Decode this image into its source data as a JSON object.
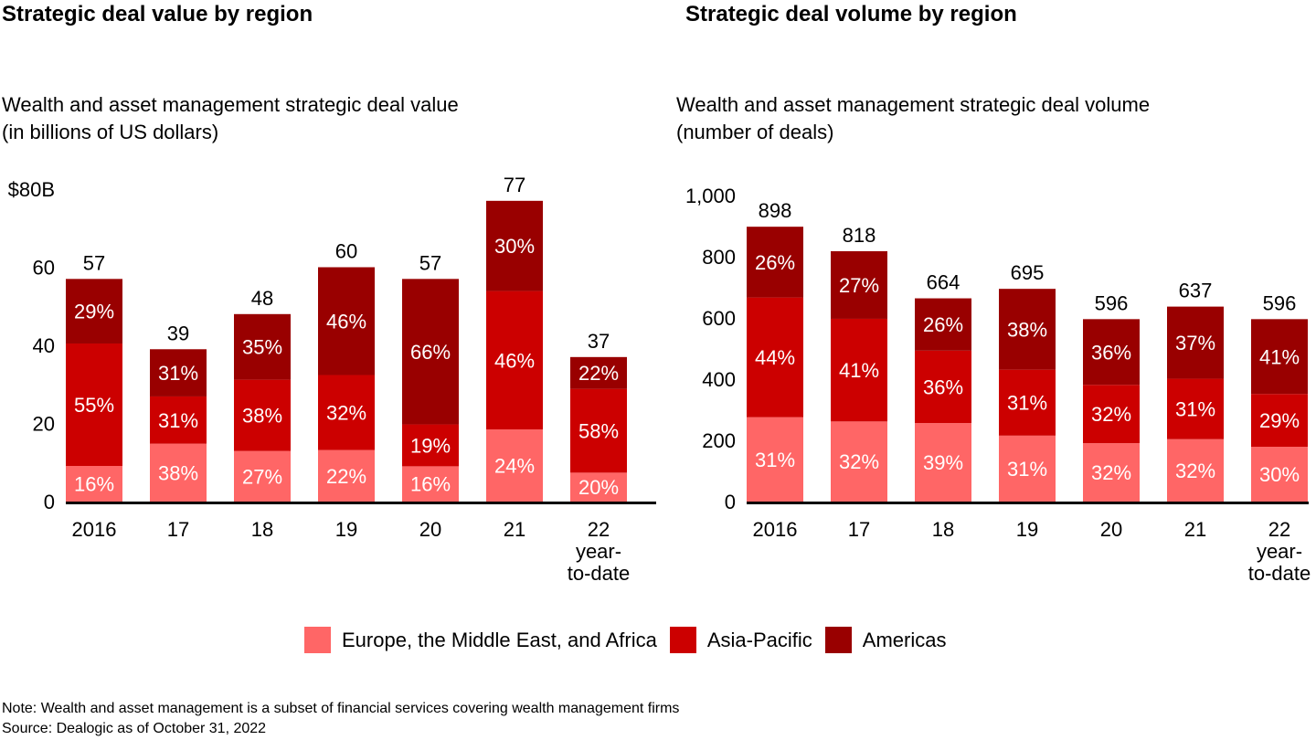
{
  "colors": {
    "emea": "#FF6666",
    "apac": "#CC0000",
    "americas": "#990000",
    "axis": "#000000",
    "segment_label": "#FFFFFF"
  },
  "legend": [
    {
      "key": "emea",
      "label": "Europe, the Middle East, and Africa"
    },
    {
      "key": "apac",
      "label": "Asia-Pacific"
    },
    {
      "key": "americas",
      "label": "Americas"
    }
  ],
  "notes": {
    "note": "Note: Wealth and asset management is a subset of financial services covering wealth management firms",
    "source": "Source: Dealogic as of October 31, 2022"
  },
  "chart_data": [
    {
      "type": "bar",
      "stacked": true,
      "title": "Strategic deal value by region",
      "subtitle_line1": "Wealth and asset management strategic deal value",
      "subtitle_line2": "(in billions of US dollars)",
      "xlabel": "",
      "ylabel": "",
      "ylim": [
        0,
        80
      ],
      "yticks": [
        0,
        20,
        40,
        60,
        80
      ],
      "ytick_labels": [
        "0",
        "20",
        "40",
        "60",
        "$80B"
      ],
      "grid": false,
      "legend_position": "bottom",
      "categories": [
        "2016",
        "17",
        "18",
        "19",
        "20",
        "21",
        "22"
      ],
      "category_sublabels": [
        "",
        "",
        "",
        "",
        "",
        "",
        "year-\nto-date"
      ],
      "totals": [
        57,
        39,
        48,
        60,
        57,
        77,
        37
      ],
      "total_labels": [
        "57",
        "39",
        "48",
        "60",
        "57",
        "77",
        "37"
      ],
      "series": [
        {
          "name": "Europe, the Middle East, and Africa",
          "key": "emea",
          "share_pct": [
            16,
            38,
            27,
            22,
            16,
            24,
            20
          ]
        },
        {
          "name": "Asia-Pacific",
          "key": "apac",
          "share_pct": [
            55,
            31,
            38,
            32,
            19,
            46,
            58
          ]
        },
        {
          "name": "Americas",
          "key": "americas",
          "share_pct": [
            29,
            31,
            35,
            46,
            66,
            30,
            22
          ]
        }
      ]
    },
    {
      "type": "bar",
      "stacked": true,
      "title": "Strategic deal volume by region",
      "subtitle_line1": "Wealth and asset management strategic deal volume",
      "subtitle_line2": "(number of deals)",
      "xlabel": "",
      "ylabel": "",
      "ylim": [
        0,
        1000
      ],
      "yticks": [
        0,
        200,
        400,
        600,
        800,
        1000
      ],
      "ytick_labels": [
        "0",
        "200",
        "400",
        "600",
        "800",
        "1,000"
      ],
      "grid": false,
      "legend_position": "bottom",
      "categories": [
        "2016",
        "17",
        "18",
        "19",
        "20",
        "21",
        "22"
      ],
      "category_sublabels": [
        "",
        "",
        "",
        "",
        "",
        "",
        "year-\nto-date"
      ],
      "totals": [
        898,
        818,
        664,
        695,
        596,
        637,
        596
      ],
      "total_labels": [
        "898",
        "818",
        "664",
        "695",
        "596",
        "637",
        "596"
      ],
      "series": [
        {
          "name": "Europe, the Middle East, and Africa",
          "key": "emea",
          "share_pct": [
            31,
            32,
            39,
            31,
            32,
            32,
            30
          ]
        },
        {
          "name": "Asia-Pacific",
          "key": "apac",
          "share_pct": [
            44,
            41,
            36,
            31,
            32,
            31,
            29
          ]
        },
        {
          "name": "Americas",
          "key": "americas",
          "share_pct": [
            26,
            27,
            26,
            38,
            36,
            37,
            41
          ]
        }
      ]
    }
  ]
}
